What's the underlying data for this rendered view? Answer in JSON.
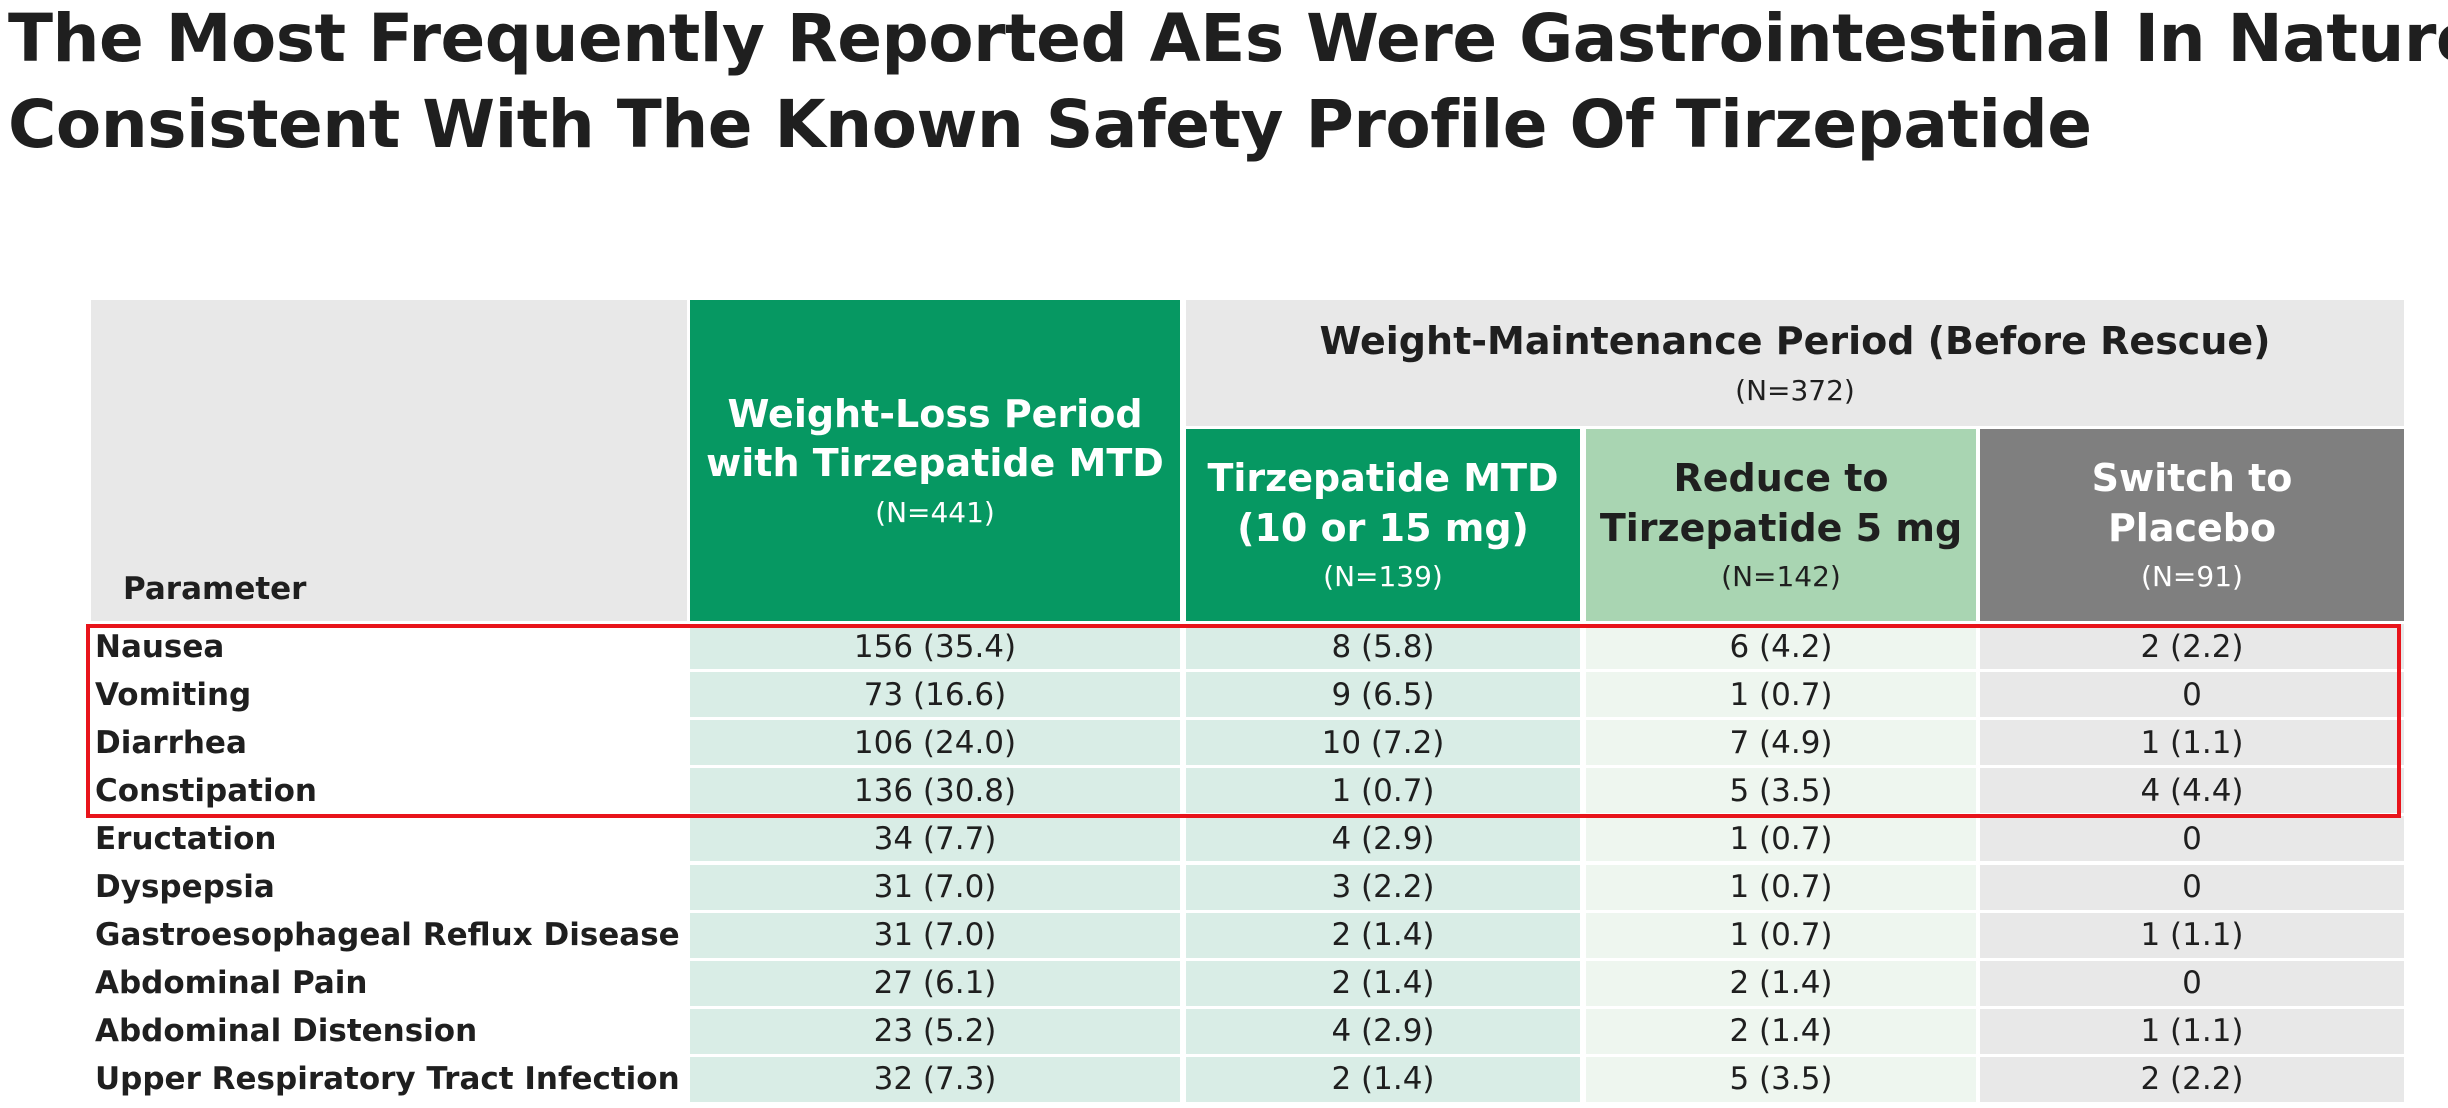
{
  "title": {
    "lines": [
      "The Most Frequently Reported AEs Were Gastrointestinal In Nature,",
      "Consistent With The Known Safety Profile Of Tirzepatide"
    ]
  },
  "table": {
    "corner": "Parameter",
    "group": {
      "label": "Weight-Maintenance Period (Before Rescue)",
      "n": "(N=372)"
    },
    "columns": [
      {
        "lines": [
          "Weight-Loss Period",
          "with Tirzepatide MTD"
        ],
        "n": "(N=441)"
      },
      {
        "lines": [
          "Tirzepatide MTD",
          "(10 or 15 mg)"
        ],
        "n": "(N=139)"
      },
      {
        "lines": [
          "Reduce to",
          "Tirzepatide 5 mg"
        ],
        "n": "(N=142)"
      },
      {
        "lines": [
          "Switch to",
          "Placebo"
        ],
        "n": "(N=91)"
      }
    ],
    "rows": [
      [
        "Nausea",
        "156 (35.4)",
        "8 (5.8)",
        "6 (4.2)",
        "2 (2.2)"
      ],
      [
        "Vomiting",
        "73 (16.6)",
        "9 (6.5)",
        "1 (0.7)",
        "0"
      ],
      [
        "Diarrhea",
        "106 (24.0)",
        "10 (7.2)",
        "7 (4.9)",
        "1 (1.1)"
      ],
      [
        "Constipation",
        "136 (30.8)",
        "1 (0.7)",
        "5 (3.5)",
        "4 (4.4)"
      ],
      [
        "Eructation",
        "34 (7.7)",
        "4 (2.9)",
        "1 (0.7)",
        "0"
      ],
      [
        "Dyspepsia",
        "31 (7.0)",
        "3 (2.2)",
        "1 (0.7)",
        "0"
      ],
      [
        "Gastroesophageal Reflux Disease",
        "31 (7.0)",
        "2 (1.4)",
        "1 (0.7)",
        "1 (1.1)"
      ],
      [
        "Abdominal Pain",
        "27 (6.1)",
        "2 (1.4)",
        "2 (1.4)",
        "0"
      ],
      [
        "Abdominal Distension",
        "23 (5.2)",
        "4 (2.9)",
        "2 (1.4)",
        "1 (1.1)"
      ],
      [
        "Upper Respiratory Tract Infection",
        "32 (7.3)",
        "2 (1.4)",
        "5 (3.5)",
        "2 (2.2)"
      ]
    ]
  }
}
